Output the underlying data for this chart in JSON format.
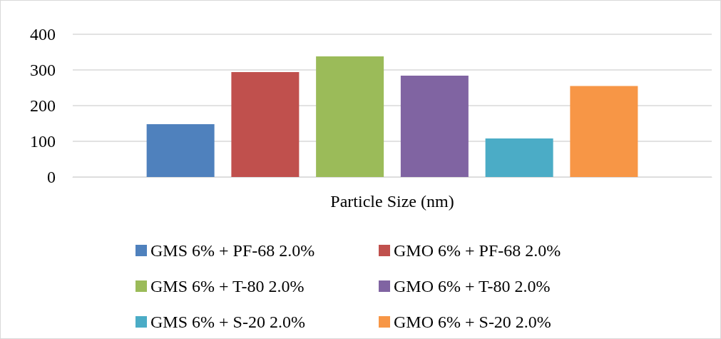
{
  "chart_data": {
    "type": "bar",
    "categories": [
      "Particle Size (nm)"
    ],
    "series": [
      {
        "name": "GMS 6% + PF-68 2.0%",
        "color": "#4f81bd",
        "values": [
          148
        ]
      },
      {
        "name": "GMO 6% + PF-68 2.0%",
        "color": "#c0504d",
        "values": [
          294
        ]
      },
      {
        "name": "GMS 6% + T-80 2.0%",
        "color": "#9bbb59",
        "values": [
          338
        ]
      },
      {
        "name": "GMO 6% + T-80 2.0%",
        "color": "#8064a2",
        "values": [
          284
        ]
      },
      {
        "name": "GMS 6% + S-20 2.0%",
        "color": "#4bacc6",
        "values": [
          108
        ]
      },
      {
        "name": "GMO 6% + S-20 2.0%",
        "color": "#f79646",
        "values": [
          255
        ]
      }
    ],
    "ylim": [
      0,
      400
    ],
    "yticks": [
      0,
      100,
      200,
      300,
      400
    ],
    "grid": "y",
    "legend": "bottom"
  }
}
